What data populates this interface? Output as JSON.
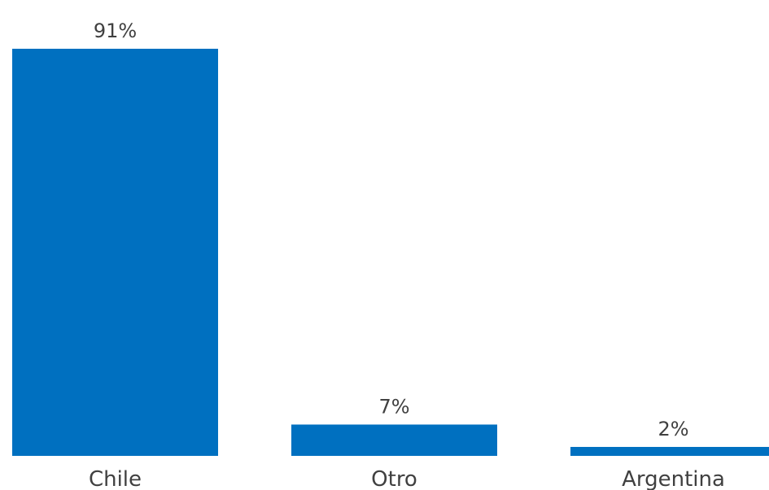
{
  "chart_data": {
    "type": "bar",
    "categories": [
      "Chile",
      "Otro",
      "Argentina"
    ],
    "values": [
      91,
      7,
      2
    ],
    "data_labels": [
      "91%",
      "7%",
      "2%"
    ],
    "unit": "%",
    "ylim": [
      0,
      91
    ],
    "grid": false,
    "legend": "none",
    "bar_color": "#0070C0",
    "text_color": "#404040"
  }
}
